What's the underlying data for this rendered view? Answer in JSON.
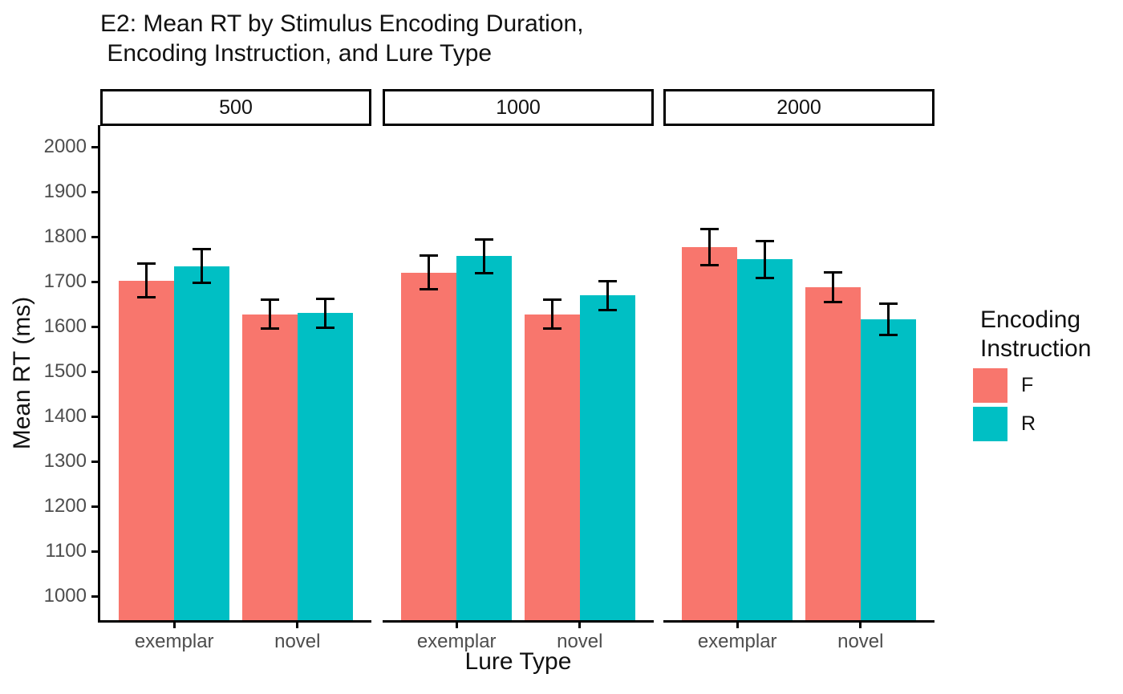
{
  "chart_data": {
    "type": "bar",
    "title": "E2: Mean RT by Stimulus Encoding Duration, Encoding Instruction, and Lure Type",
    "title_lines": [
      "E2: Mean RT by Stimulus Encoding Duration,",
      " Encoding Instruction, and Lure Type"
    ],
    "xlabel": "Lure Type",
    "ylabel": "Mean RT (ms)",
    "ylim": [
      947,
      2045
    ],
    "yticks": [
      1000,
      1100,
      1200,
      1300,
      1400,
      1500,
      1600,
      1700,
      1800,
      1900,
      2000
    ],
    "grid": false,
    "error_bars": true,
    "facet_variable": "Stimulus Encoding Duration",
    "categories": [
      "exemplar",
      "novel"
    ],
    "series": [
      {
        "name": "F",
        "color": "#F8766D"
      },
      {
        "name": "R",
        "color": "#00BFC4"
      }
    ],
    "legend": {
      "title": "Encoding Instruction",
      "title_lines": [
        "Encoding",
        "Instruction"
      ],
      "position": "right"
    },
    "facets": [
      {
        "label": "500",
        "values": {
          "F": [
            1703,
            1628
          ],
          "R": [
            1735,
            1630
          ]
        },
        "ci": {
          "F": [
            [
              1665,
              1741
            ],
            [
              1596,
              1661
            ]
          ],
          "R": [
            [
              1698,
              1772
            ],
            [
              1597,
              1663
            ]
          ]
        }
      },
      {
        "label": "1000",
        "values": {
          "F": [
            1721,
            1628
          ],
          "R": [
            1757,
            1670
          ]
        },
        "ci": {
          "F": [
            [
              1684,
              1759
            ],
            [
              1596,
              1660
            ]
          ],
          "R": [
            [
              1719,
              1795
            ],
            [
              1637,
              1701
            ]
          ]
        }
      },
      {
        "label": "2000",
        "values": {
          "F": [
            1777,
            1688
          ],
          "R": [
            1750,
            1616
          ]
        },
        "ci": {
          "F": [
            [
              1737,
              1817
            ],
            [
              1655,
              1721
            ]
          ],
          "R": [
            [
              1709,
              1791
            ],
            [
              1581,
              1651
            ]
          ]
        }
      }
    ]
  }
}
